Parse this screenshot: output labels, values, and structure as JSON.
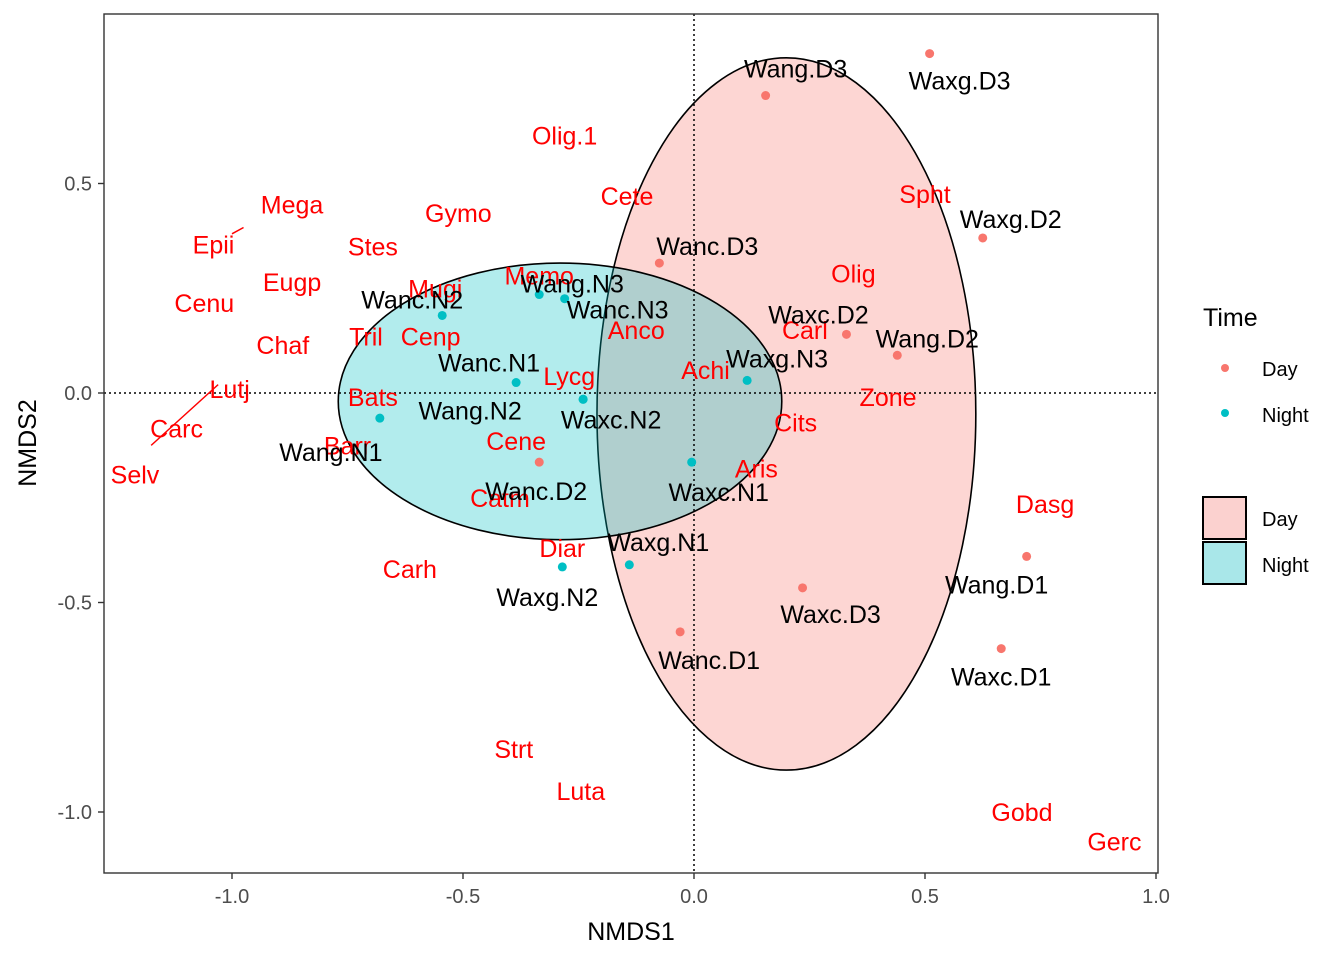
{
  "chart_data": {
    "type": "scatter",
    "title": "",
    "xlabel": "NMDS1",
    "ylabel": "NMDS2",
    "xlim": [
      -1.28,
      1.0
    ],
    "ylim": [
      -1.15,
      0.9
    ],
    "x_ticks": [
      -1.0,
      -0.5,
      0.0,
      0.5,
      1.0
    ],
    "x_tick_labels": [
      "-1.0",
      "-0.5",
      "0.0",
      "0.5",
      "1.0"
    ],
    "y_ticks": [
      -1.0,
      -0.5,
      0.0,
      0.5
    ],
    "y_tick_labels": [
      "-1.0",
      "-0.5",
      "0.0",
      "0.5"
    ],
    "grid": false,
    "reference_lines": {
      "x": 0,
      "y": 0,
      "style": "dotted"
    },
    "colors": {
      "Day": "#f8766d",
      "Night": "#00bfc4",
      "species": "#ff0000",
      "Day_fill": "#fbd1cf",
      "Night_fill": "#a9e7e9"
    },
    "legend": {
      "position": "right",
      "time_title": "Time",
      "time_entries": [
        "Day",
        "Night"
      ],
      "fill_entries": [
        "Day",
        "Night"
      ]
    },
    "ellipses": [
      {
        "group": "Day",
        "center": [
          0.2,
          -0.05
        ],
        "rx": 0.41,
        "ry": 0.85
      },
      {
        "group": "Night",
        "center": [
          -0.29,
          -0.02
        ],
        "rx": 0.48,
        "ry": 0.33
      }
    ],
    "series": [
      {
        "name": "Day",
        "points": [
          {
            "label": "Wang.D3",
            "x": 0.155,
            "y": 0.71
          },
          {
            "label": "Waxg.D3",
            "x": 0.51,
            "y": 0.81
          },
          {
            "label": "Waxg.D2",
            "x": 0.625,
            "y": 0.37
          },
          {
            "label": "Wanc.D3",
            "x": -0.075,
            "y": 0.31
          },
          {
            "label": "Waxc.D2",
            "x": 0.33,
            "y": 0.14
          },
          {
            "label": "Wang.D2",
            "x": 0.44,
            "y": 0.09
          },
          {
            "label": "Wanc.D2",
            "x": -0.335,
            "y": -0.165
          },
          {
            "label": "Waxc.D3",
            "x": 0.235,
            "y": -0.465
          },
          {
            "label": "Wang.D1",
            "x": 0.72,
            "y": -0.39
          },
          {
            "label": "Wanc.D1",
            "x": -0.03,
            "y": -0.57
          },
          {
            "label": "Waxc.D1",
            "x": 0.665,
            "y": -0.61
          }
        ]
      },
      {
        "name": "Night",
        "points": [
          {
            "label": "Wang.N3",
            "x": -0.335,
            "y": 0.235
          },
          {
            "label": "Wanc.N3",
            "x": -0.28,
            "y": 0.225
          },
          {
            "label": "Wanc.N2",
            "x": -0.545,
            "y": 0.185
          },
          {
            "label": "Wanc.N1",
            "x": -0.385,
            "y": 0.025
          },
          {
            "label": "Waxg.N3",
            "x": 0.115,
            "y": 0.03
          },
          {
            "label": "Wang.N2",
            "x": -0.24,
            "y": -0.015
          },
          {
            "label": "Wang.N1",
            "x": -0.68,
            "y": -0.06
          },
          {
            "label": "Waxc.N2",
            "x": -0.24,
            "y": -0.015
          },
          {
            "label": "Waxc.N1",
            "x": -0.005,
            "y": -0.165
          },
          {
            "label": "Waxg.N1",
            "x": -0.14,
            "y": -0.41
          },
          {
            "label": "Waxg.N2",
            "x": -0.285,
            "y": -0.415
          }
        ]
      }
    ],
    "species": [
      {
        "label": "Olig.1",
        "x": -0.28,
        "y": 0.615
      },
      {
        "label": "Cete",
        "x": -0.145,
        "y": 0.47
      },
      {
        "label": "Spht",
        "x": 0.5,
        "y": 0.475
      },
      {
        "label": "Mega",
        "x": -0.87,
        "y": 0.45
      },
      {
        "label": "Gymo",
        "x": -0.51,
        "y": 0.43
      },
      {
        "label": "Epii",
        "x": -1.04,
        "y": 0.355
      },
      {
        "label": "Stes",
        "x": -0.695,
        "y": 0.35
      },
      {
        "label": "Olig",
        "x": 0.345,
        "y": 0.285
      },
      {
        "label": "Memo",
        "x": -0.335,
        "y": 0.28
      },
      {
        "label": "Eugp",
        "x": -0.87,
        "y": 0.265
      },
      {
        "label": "Mugi",
        "x": -0.56,
        "y": 0.25
      },
      {
        "label": "Cenu",
        "x": -1.06,
        "y": 0.215
      },
      {
        "label": "Carl",
        "x": 0.24,
        "y": 0.15
      },
      {
        "label": "Anco",
        "x": -0.125,
        "y": 0.15
      },
      {
        "label": "Tril",
        "x": -0.71,
        "y": 0.135
      },
      {
        "label": "Cenp",
        "x": -0.57,
        "y": 0.135
      },
      {
        "label": "Chaf",
        "x": -0.89,
        "y": 0.115
      },
      {
        "label": "Achi",
        "x": 0.025,
        "y": 0.055
      },
      {
        "label": "Lycg",
        "x": -0.27,
        "y": 0.04
      },
      {
        "label": "Lutj",
        "x": -1.005,
        "y": 0.01
      },
      {
        "label": "Zone",
        "x": 0.42,
        "y": -0.01
      },
      {
        "label": "Bats",
        "x": -0.695,
        "y": -0.01
      },
      {
        "label": "Cits",
        "x": 0.22,
        "y": -0.07
      },
      {
        "label": "Carc",
        "x": -1.12,
        "y": -0.085
      },
      {
        "label": "Cene",
        "x": -0.385,
        "y": -0.115
      },
      {
        "label": "Barr",
        "x": -0.75,
        "y": -0.125
      },
      {
        "label": "Selv",
        "x": -1.21,
        "y": -0.195
      },
      {
        "label": "Aris",
        "x": 0.135,
        "y": -0.18
      },
      {
        "label": "Catm",
        "x": -0.42,
        "y": -0.25
      },
      {
        "label": "Dasg",
        "x": 0.76,
        "y": -0.265
      },
      {
        "label": "Diar",
        "x": -0.285,
        "y": -0.37
      },
      {
        "label": "Carh",
        "x": -0.615,
        "y": -0.42
      },
      {
        "label": "Strt",
        "x": -0.39,
        "y": -0.85
      },
      {
        "label": "Luta",
        "x": -0.245,
        "y": -0.95
      },
      {
        "label": "Gobd",
        "x": 0.71,
        "y": -1.0
      },
      {
        "label": "Gerc",
        "x": 0.91,
        "y": -1.07
      }
    ]
  }
}
